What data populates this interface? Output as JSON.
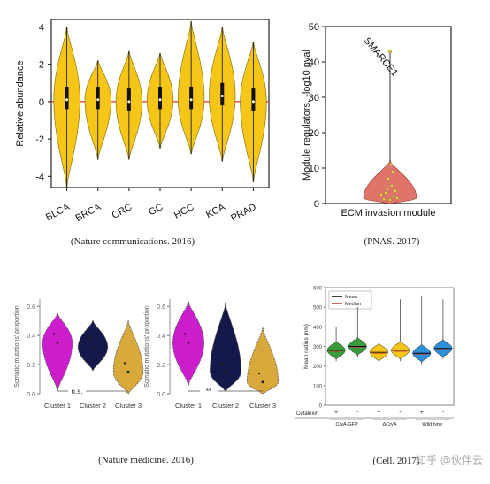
{
  "chart_data": [
    {
      "type": "violin",
      "caption": "(Nature communications. 2016)",
      "ylabel": "Relative abundance",
      "ylim": [
        -4.6,
        4.4
      ],
      "yticks": [
        "4",
        "2",
        "0",
        "-2",
        "-4"
      ],
      "categories": [
        "BLCA",
        "BRCA",
        "CRC",
        "GC",
        "HCC",
        "KCA",
        "PRAD"
      ],
      "ranges": [
        [
          -4.6,
          4.0
        ],
        [
          -3.1,
          2.2
        ],
        [
          -3.1,
          2.7
        ],
        [
          -2.5,
          2.6
        ],
        [
          -2.8,
          4.3
        ],
        [
          -3.2,
          4.0
        ],
        [
          -4.3,
          3.2
        ]
      ],
      "medians": [
        0.1,
        0.1,
        0.0,
        0.1,
        0.1,
        0.3,
        0.0
      ],
      "fill_color": "#f5c518",
      "zero_line_color": "#e03030"
    },
    {
      "type": "violin",
      "caption": "(PNAS. 2017)",
      "ylabel": "Module regulators, -log10 pval",
      "xlabel": "ECM invasion module",
      "ylim": [
        0,
        50
      ],
      "yticks": [
        "50",
        "40",
        "30",
        "20",
        "10",
        "0"
      ],
      "annotation": "SMARCE1",
      "annotation_value": 43,
      "fill_color": "#e0736a"
    },
    {
      "type": "violin",
      "caption": "(Nature medicine. 2016)",
      "panels": [
        {
          "ylabel": "Somatic mutations' proportion",
          "yticks": [
            "0.6",
            "0.4",
            "0.2",
            "0.0"
          ],
          "ylim": [
            0,
            0.65
          ],
          "categories": [
            "Cluster 1",
            "Cluster 2",
            "Cluster 3"
          ],
          "colors": [
            "#cc1dcc",
            "#14184a",
            "#d8a83a"
          ],
          "significance": "n.s."
        },
        {
          "ylabel": "Somatic mutations' proportion",
          "yticks": [
            "0.6",
            "0.4",
            "0.2",
            "0.0"
          ],
          "ylim": [
            0,
            0.65
          ],
          "categories": [
            "Cluster 1",
            "Cluster 2",
            "Cluster 3"
          ],
          "colors": [
            "#cc1dcc",
            "#14184a",
            "#d8a83a"
          ],
          "significance": "**"
        }
      ]
    },
    {
      "type": "violin",
      "caption": "(Cell. 2017)",
      "ylabel": "Mean radius (nm)",
      "ylim": [
        0,
        600
      ],
      "yticks": [
        "600",
        "500",
        "400",
        "300",
        "200",
        "100",
        "0"
      ],
      "legend": [
        "Mean",
        "Median"
      ],
      "legend_colors": [
        "#000000",
        "#e03030"
      ],
      "row_label": "Cefalexin",
      "signs": [
        "+",
        "-",
        "+",
        "-",
        "+",
        "-"
      ],
      "groups": [
        "CrvA-GFP",
        "ΔCrvA",
        "Wild type"
      ],
      "colors": [
        "#3a9b3a",
        "#3a9b3a",
        "#f5c518",
        "#f5c518",
        "#2d8fd8",
        "#2d8fd8"
      ],
      "means": [
        280,
        300,
        270,
        280,
        265,
        290
      ],
      "maxima": [
        400,
        500,
        430,
        540,
        560,
        540
      ]
    }
  ],
  "watermark": "知乎 @伙伴云"
}
